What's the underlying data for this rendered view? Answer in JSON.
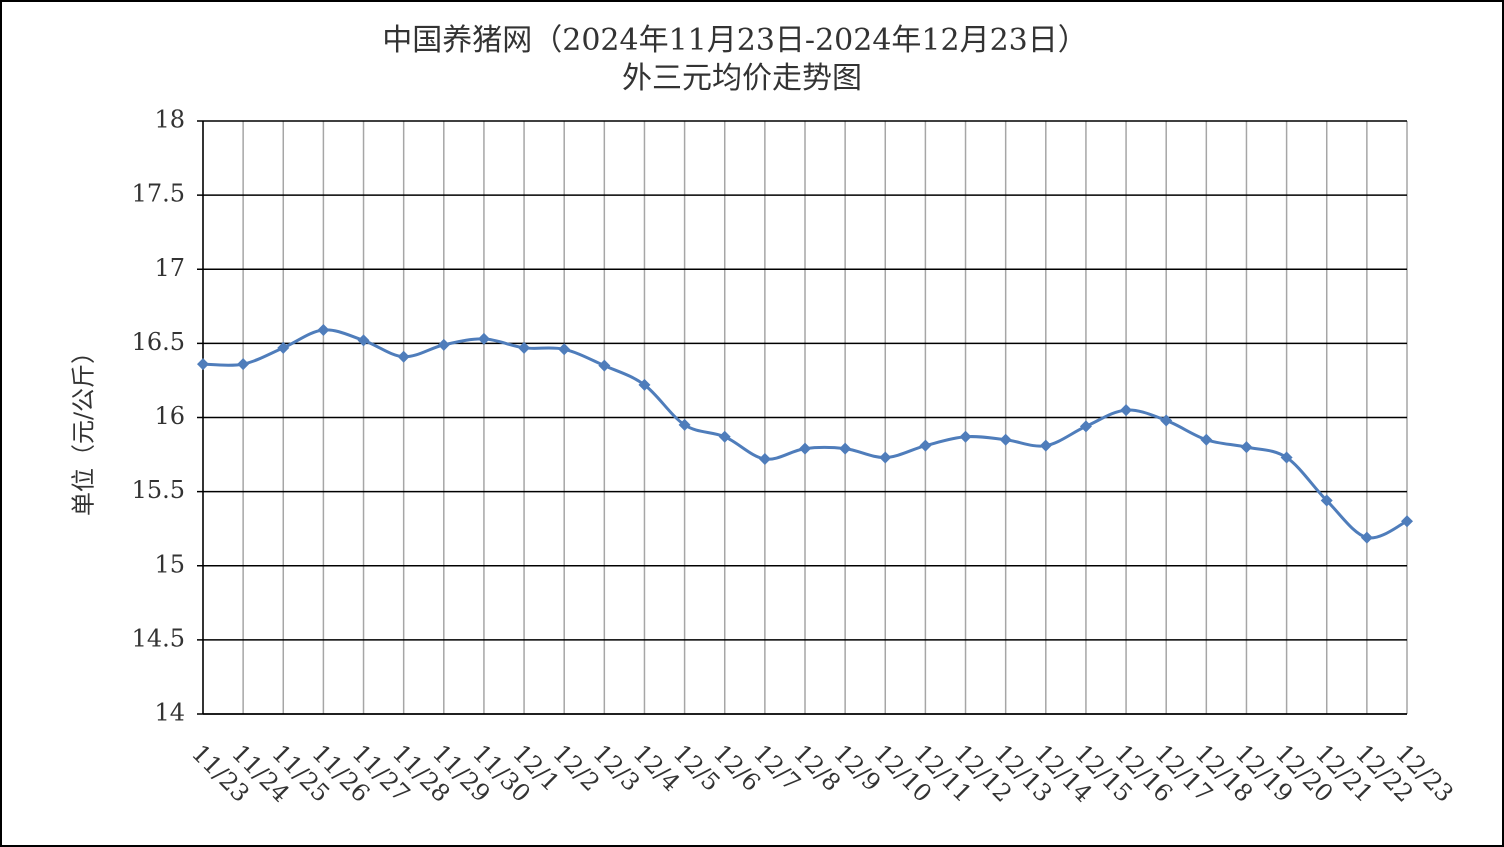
{
  "chart_data": {
    "type": "line",
    "title": "中国养猪网（2024年11月23日-2024年12月23日）",
    "subtitle": "外三元均价走势图",
    "y_label": "单位（元/公斤）",
    "categories": [
      "11/23",
      "11/24",
      "11/25",
      "11/26",
      "11/27",
      "11/28",
      "11/29",
      "11/30",
      "12/1",
      "12/2",
      "12/3",
      "12/4",
      "12/5",
      "12/6",
      "12/7",
      "12/8",
      "12/9",
      "12/10",
      "12/11",
      "12/12",
      "12/13",
      "12/14",
      "12/15",
      "12/16",
      "12/17",
      "12/18",
      "12/19",
      "12/20",
      "12/21",
      "12/22",
      "12/23"
    ],
    "series": [
      {
        "color": "#4f7dbb",
        "values": [
          16.36,
          16.36,
          16.47,
          16.59,
          16.52,
          16.41,
          16.49,
          16.53,
          16.47,
          16.46,
          16.35,
          16.22,
          15.95,
          15.87,
          15.72,
          15.79,
          15.79,
          15.73,
          15.81,
          15.87,
          15.85,
          15.81,
          15.94,
          16.05,
          15.98,
          15.85,
          15.8,
          15.73,
          15.44,
          15.19,
          15.3
        ]
      }
    ],
    "ylim": [
      14,
      18
    ],
    "yticks": [
      14,
      14.5,
      15,
      15.5,
      16,
      16.5,
      17,
      17.5,
      18
    ],
    "grid": true
  }
}
